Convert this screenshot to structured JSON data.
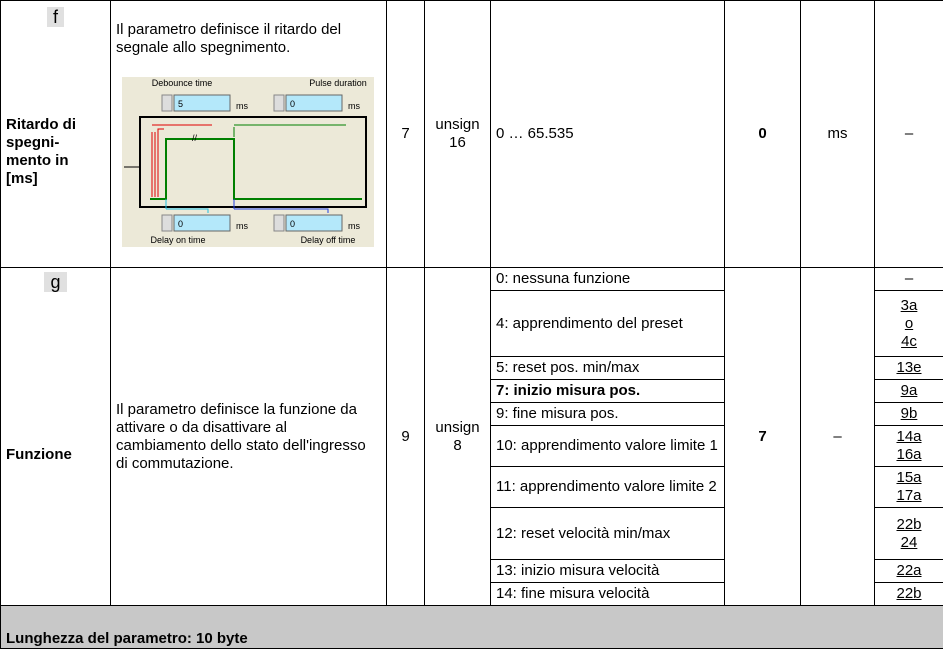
{
  "rows": [
    {
      "id": "f",
      "name": "Ritardo di\nspegni-\nmento in\n[ms]",
      "description": "Il parametro definisce il ritardo del segnale allo spegnimento.",
      "figure": {
        "debounce_label": "Debounce time",
        "pulse_label": "Pulse duration",
        "delay_on_label": "Delay on time",
        "delay_off_label": "Delay off time",
        "debounce_value": "5",
        "pulse_value": "0",
        "delay_on_value": "0",
        "delay_off_value": "0",
        "unit": "ms",
        "break_mark": "//"
      },
      "size": "7",
      "type": "unsign\n16",
      "range": "0 … 65.535",
      "default": "0",
      "unit": "ms",
      "ref": "–"
    },
    {
      "id": "g",
      "name": "Funzione",
      "description": "Il parametro definisce la funzione da attivare o da disattivare al cambiamento dello stato dell'ingresso di commutazione.",
      "size": "9",
      "type": "unsign\n8",
      "default": "7",
      "unit": "–",
      "options": [
        {
          "label": "0: nessuna funzione",
          "ref": "–"
        },
        {
          "label": "4: apprendimento del preset",
          "ref": "3a\no\n4c"
        },
        {
          "label": "5: reset pos. min/max",
          "ref": "13e"
        },
        {
          "label": "7: inizio misura pos.",
          "ref": "9a"
        },
        {
          "label": "9: fine misura pos.",
          "ref": "9b"
        },
        {
          "label": "10: apprendimento valore limite 1",
          "ref": "14a\n16a"
        },
        {
          "label": "11: apprendimento valore limite 2",
          "ref": "15a\n17a"
        },
        {
          "label": "12: reset velocità min/max",
          "ref": "22b\n24"
        },
        {
          "label": "13: inizio misura velocità",
          "ref": "22a"
        },
        {
          "label": "14: fine misura velocità",
          "ref": "22b"
        }
      ]
    }
  ],
  "footer": "Lunghezza del parametro: 10 byte"
}
